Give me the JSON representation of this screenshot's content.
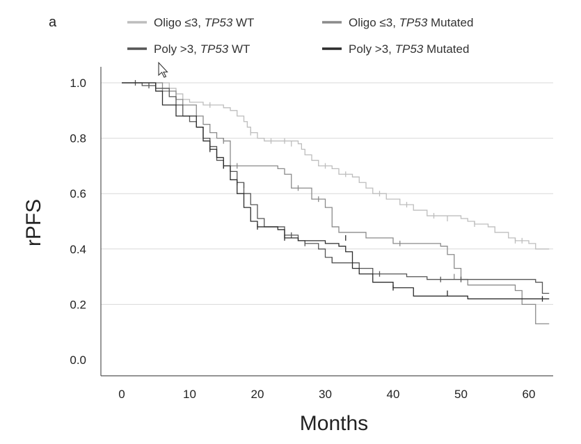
{
  "chart_data": {
    "type": "line",
    "subtype": "kaplan-meier-step",
    "panel_label": "a",
    "xlabel": "Months",
    "ylabel": "rPFS",
    "xlim": [
      0,
      63
    ],
    "ylim": [
      0,
      1.0
    ],
    "x_ticks": [
      0,
      10,
      20,
      30,
      40,
      50,
      60
    ],
    "y_ticks": [
      0.0,
      0.2,
      0.4,
      0.6,
      0.8,
      1.0
    ],
    "y_tick_labels": [
      "0.0",
      "0.2",
      "0.4",
      "0.6",
      "0.8",
      "1.0"
    ],
    "grid": "horizontal",
    "legend_position": "top",
    "series": [
      {
        "name": "Oligo ≤3, TP53 WT",
        "legend_prefix": "Oligo ≤3, ",
        "legend_gene": "TP53",
        "legend_suffix": " WT",
        "color": "#bdbdbd",
        "steps": [
          [
            0,
            1.0
          ],
          [
            7,
            0.98
          ],
          [
            8,
            0.96
          ],
          [
            9,
            0.94
          ],
          [
            10,
            0.93
          ],
          [
            12,
            0.92
          ],
          [
            15,
            0.91
          ],
          [
            16,
            0.9
          ],
          [
            17,
            0.88
          ],
          [
            18,
            0.86
          ],
          [
            18.5,
            0.84
          ],
          [
            19,
            0.82
          ],
          [
            20,
            0.8
          ],
          [
            21,
            0.79
          ],
          [
            26,
            0.78
          ],
          [
            26.5,
            0.76
          ],
          [
            27,
            0.74
          ],
          [
            28,
            0.72
          ],
          [
            29,
            0.7
          ],
          [
            31,
            0.69
          ],
          [
            32,
            0.67
          ],
          [
            34,
            0.66
          ],
          [
            35,
            0.64
          ],
          [
            36,
            0.62
          ],
          [
            37,
            0.6
          ],
          [
            39,
            0.58
          ],
          [
            41,
            0.56
          ],
          [
            43,
            0.54
          ],
          [
            45,
            0.52
          ],
          [
            50,
            0.51
          ],
          [
            51,
            0.5
          ],
          [
            52,
            0.49
          ],
          [
            54,
            0.48
          ],
          [
            55,
            0.46
          ],
          [
            57,
            0.44
          ],
          [
            58,
            0.43
          ],
          [
            60,
            0.42
          ],
          [
            61,
            0.4
          ],
          [
            63,
            0.4
          ]
        ],
        "censor": [
          [
            13,
            0.92
          ],
          [
            19,
            0.82
          ],
          [
            22,
            0.79
          ],
          [
            24,
            0.79
          ],
          [
            25,
            0.78
          ],
          [
            30,
            0.7
          ],
          [
            33,
            0.67
          ],
          [
            38,
            0.6
          ],
          [
            42,
            0.56
          ],
          [
            46,
            0.52
          ],
          [
            48,
            0.51
          ],
          [
            52,
            0.49
          ],
          [
            58,
            0.43
          ],
          [
            59,
            0.43
          ]
        ]
      },
      {
        "name": "Oligo ≤3, TP53 Mutated",
        "legend_prefix": "Oligo ≤3, ",
        "legend_gene": "TP53",
        "legend_suffix": " Mutated",
        "color": "#8a8a8a",
        "steps": [
          [
            0,
            1.0
          ],
          [
            6,
            0.97
          ],
          [
            8,
            0.94
          ],
          [
            9,
            0.92
          ],
          [
            11,
            0.88
          ],
          [
            12,
            0.85
          ],
          [
            13,
            0.82
          ],
          [
            14,
            0.8
          ],
          [
            15,
            0.79
          ],
          [
            16,
            0.7
          ],
          [
            23,
            0.69
          ],
          [
            24,
            0.67
          ],
          [
            25,
            0.62
          ],
          [
            28,
            0.58
          ],
          [
            30,
            0.55
          ],
          [
            31,
            0.48
          ],
          [
            32,
            0.46
          ],
          [
            36,
            0.44
          ],
          [
            40,
            0.42
          ],
          [
            47,
            0.41
          ],
          [
            48,
            0.38
          ],
          [
            49,
            0.33
          ],
          [
            50,
            0.29
          ],
          [
            51,
            0.27
          ],
          [
            58,
            0.25
          ],
          [
            59,
            0.2
          ],
          [
            61,
            0.13
          ],
          [
            63,
            0.13
          ]
        ],
        "censor": [
          [
            15,
            0.79
          ],
          [
            17,
            0.7
          ],
          [
            26,
            0.62
          ],
          [
            29,
            0.58
          ],
          [
            41,
            0.42
          ],
          [
            49,
            0.3
          ]
        ]
      },
      {
        "name": "Poly >3, TP53 WT",
        "legend_prefix": "Poly >3, ",
        "legend_gene": "TP53",
        "legend_suffix": " WT",
        "color": "#555555",
        "steps": [
          [
            0,
            1.0
          ],
          [
            3,
            0.99
          ],
          [
            5,
            0.98
          ],
          [
            7,
            0.95
          ],
          [
            8,
            0.92
          ],
          [
            9,
            0.88
          ],
          [
            10,
            0.86
          ],
          [
            11,
            0.84
          ],
          [
            12,
            0.8
          ],
          [
            13,
            0.77
          ],
          [
            14,
            0.72
          ],
          [
            15,
            0.7
          ],
          [
            16,
            0.68
          ],
          [
            17,
            0.64
          ],
          [
            18,
            0.6
          ],
          [
            19,
            0.56
          ],
          [
            20,
            0.51
          ],
          [
            21,
            0.48
          ],
          [
            22,
            0.48
          ],
          [
            24,
            0.45
          ],
          [
            26,
            0.43
          ],
          [
            27,
            0.42
          ],
          [
            29,
            0.4
          ],
          [
            30,
            0.37
          ],
          [
            31,
            0.35
          ],
          [
            35,
            0.33
          ],
          [
            37,
            0.31
          ],
          [
            42,
            0.3
          ],
          [
            45,
            0.29
          ],
          [
            61,
            0.28
          ],
          [
            62,
            0.24
          ],
          [
            63,
            0.24
          ]
        ],
        "censor": [
          [
            2,
            1.0
          ],
          [
            4,
            0.99
          ],
          [
            13,
            0.77
          ],
          [
            15,
            0.7
          ],
          [
            17,
            0.64
          ],
          [
            18,
            0.63
          ],
          [
            25,
            0.45
          ],
          [
            27,
            0.42
          ],
          [
            31,
            0.36
          ],
          [
            38,
            0.31
          ],
          [
            47,
            0.29
          ],
          [
            50,
            0.29
          ]
        ]
      },
      {
        "name": "Poly >3, TP53 Mutated",
        "legend_prefix": "Poly >3, ",
        "legend_gene": "TP53",
        "legend_suffix": " Mutated",
        "color": "#2b2b2b",
        "steps": [
          [
            0,
            1.0
          ],
          [
            5,
            0.97
          ],
          [
            6,
            0.92
          ],
          [
            8,
            0.88
          ],
          [
            11,
            0.84
          ],
          [
            12,
            0.79
          ],
          [
            13,
            0.76
          ],
          [
            14,
            0.73
          ],
          [
            15,
            0.7
          ],
          [
            16,
            0.65
          ],
          [
            17,
            0.6
          ],
          [
            18,
            0.55
          ],
          [
            19,
            0.5
          ],
          [
            20,
            0.48
          ],
          [
            23,
            0.47
          ],
          [
            24,
            0.44
          ],
          [
            26,
            0.43
          ],
          [
            30,
            0.42
          ],
          [
            32,
            0.41
          ],
          [
            33,
            0.39
          ],
          [
            34,
            0.33
          ],
          [
            35,
            0.31
          ],
          [
            37,
            0.28
          ],
          [
            40,
            0.26
          ],
          [
            43,
            0.23
          ],
          [
            50,
            0.23
          ],
          [
            51,
            0.22
          ],
          [
            61,
            0.22
          ],
          [
            62,
            0.22
          ],
          [
            63,
            0.22
          ]
        ],
        "censor": [
          [
            5,
            0.99
          ],
          [
            13,
            0.76
          ],
          [
            15,
            0.7
          ],
          [
            20,
            0.48
          ],
          [
            24,
            0.44
          ],
          [
            33,
            0.44
          ],
          [
            40,
            0.26
          ],
          [
            48,
            0.24
          ],
          [
            62,
            0.22
          ]
        ]
      }
    ]
  }
}
